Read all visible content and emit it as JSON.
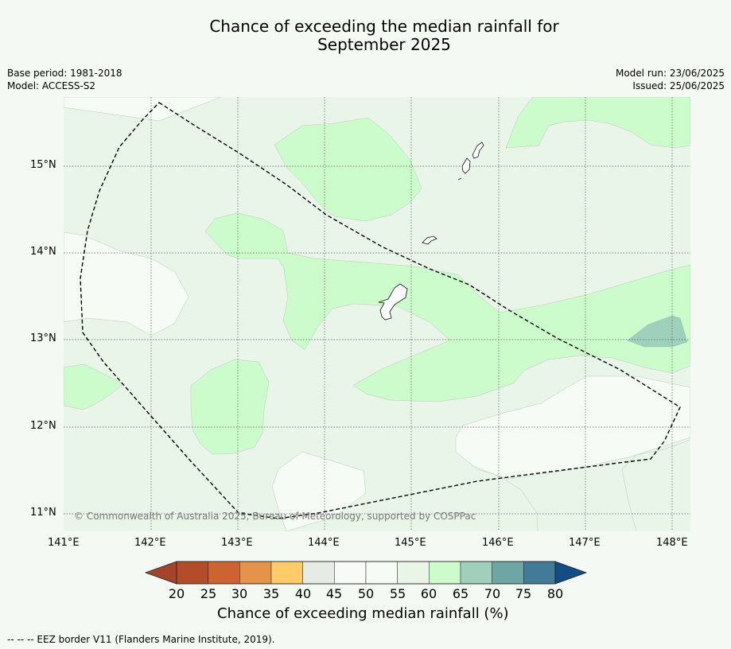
{
  "title_line1": "Chance of exceeding the median rainfall for",
  "title_line2": "September 2025",
  "meta": {
    "base_period": "Base period: 1981-2018",
    "model": "Model: ACCESS-S2",
    "model_run": "Model run: 23/06/2025",
    "issued": "Issued: 25/06/2025"
  },
  "lat_labels": [
    "15°N",
    "14°N",
    "13°N",
    "12°N",
    "11°N"
  ],
  "lon_labels": [
    "141°E",
    "142°E",
    "143°E",
    "144°E",
    "145°E",
    "146°E",
    "147°E",
    "148°E"
  ],
  "copyright": "© Commonwealth of Australia 2025, Bureau of Meteorology, supported by COSPPac",
  "colorbar": {
    "ticks": [
      "20",
      "25",
      "30",
      "35",
      "40",
      "45",
      "50",
      "55",
      "60",
      "65",
      "70",
      "75",
      "80"
    ],
    "colors": [
      "#a6432b",
      "#b34c28",
      "#cd6331",
      "#e39448",
      "#fdcb6a",
      "#e7ebe6",
      "#f8faf7",
      "#f7fbf6",
      "#eaf5ea",
      "#ccfccc",
      "#9fd0bc",
      "#6ea6a5",
      "#417b97",
      "#134d84"
    ],
    "label": "Chance of exceeding median rainfall (%)"
  },
  "footnote": "--  --  -- EEZ border V11 (Flanders Marine Institute, 2019)."
}
